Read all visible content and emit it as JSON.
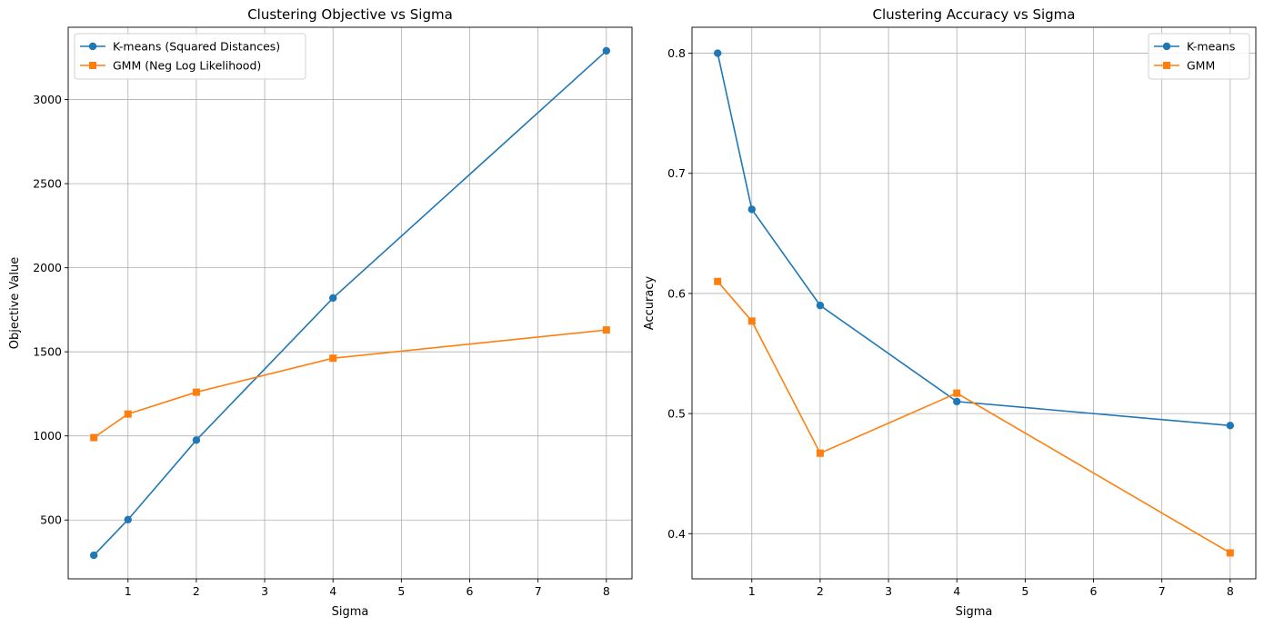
{
  "chart_data": [
    {
      "type": "line",
      "title": "Clustering Objective vs Sigma",
      "xlabel": "Sigma",
      "ylabel": "Objective Value",
      "xlim": [
        0.125,
        8.375
      ],
      "ylim": [
        150,
        3430
      ],
      "xticks": [
        1,
        2,
        3,
        4,
        5,
        6,
        7,
        8
      ],
      "yticks": [
        500,
        1000,
        1500,
        2000,
        2500,
        3000
      ],
      "grid": true,
      "legend_position": "top-left",
      "x": [
        0.5,
        1,
        2,
        4,
        8
      ],
      "series": [
        {
          "name": "K-means (Squared Distances)",
          "values": [
            290,
            502,
            975,
            1820,
            3290
          ],
          "color": "#1f77b4",
          "marker": "circle"
        },
        {
          "name": "GMM (Neg Log Likelihood)",
          "values": [
            990,
            1130,
            1260,
            1462,
            1630
          ],
          "color": "#ff7f0e",
          "marker": "square"
        }
      ]
    },
    {
      "type": "line",
      "title": "Clustering Accuracy vs Sigma",
      "xlabel": "Sigma",
      "ylabel": "Accuracy",
      "xlim": [
        0.125,
        8.375
      ],
      "ylim": [
        0.3624,
        0.8216
      ],
      "xticks": [
        1,
        2,
        3,
        4,
        5,
        6,
        7,
        8
      ],
      "yticks": [
        0.4,
        0.5,
        0.6,
        0.7,
        0.8
      ],
      "grid": true,
      "legend_position": "top-right",
      "x": [
        0.5,
        1,
        2,
        4,
        8
      ],
      "series": [
        {
          "name": "K-means",
          "values": [
            0.8,
            0.67,
            0.59,
            0.51,
            0.49
          ],
          "color": "#1f77b4",
          "marker": "circle"
        },
        {
          "name": "GMM",
          "values": [
            0.61,
            0.577,
            0.467,
            0.517,
            0.384
          ],
          "color": "#ff7f0e",
          "marker": "square"
        }
      ]
    }
  ]
}
